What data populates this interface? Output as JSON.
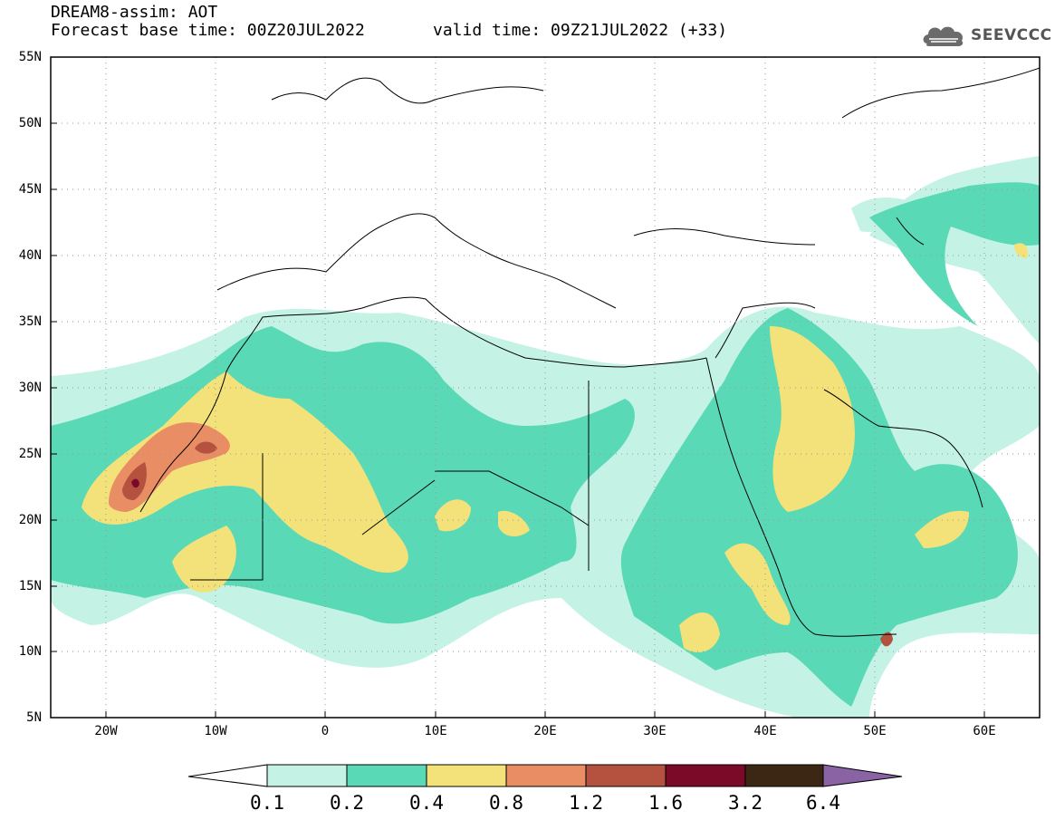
{
  "title": {
    "line1": "DREAM8-assim: AOT",
    "line2": "Forecast base time: 00Z20JUL2022",
    "valid": "valid time: 09Z21JUL2022 (+33)"
  },
  "logo": {
    "text": "SEEVCCC",
    "icon": "cloud-icon"
  },
  "map": {
    "lat_labels": [
      "55N",
      "50N",
      "45N",
      "40N",
      "35N",
      "30N",
      "25N",
      "20N",
      "15N",
      "10N",
      "5N"
    ],
    "lon_labels": [
      "20W",
      "10W",
      "0",
      "10E",
      "20E",
      "30E",
      "40E",
      "50E",
      "60E"
    ],
    "lat_range": [
      5,
      55
    ],
    "lon_range": [
      -25,
      65
    ]
  },
  "colorbar": {
    "labels": [
      "0.1",
      "0.2",
      "0.4",
      "0.8",
      "1.2",
      "1.6",
      "3.2",
      "6.4"
    ],
    "colors": [
      "#c4f2e4",
      "#5ad9b6",
      "#f3e27a",
      "#e98d64",
      "#b4523f",
      "#7a0a28",
      "#3c2614",
      "#8a63a5"
    ]
  }
}
